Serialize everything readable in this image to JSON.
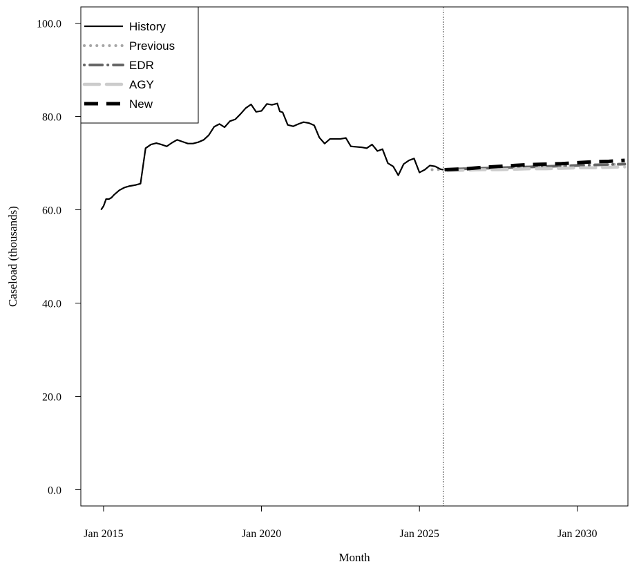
{
  "chart_data": {
    "type": "line",
    "title": "",
    "xlabel": "Month",
    "ylabel": "Caseload (thousands)",
    "xlim": [
      2014.28,
      2031.6
    ],
    "ylim": [
      -3.5,
      103.5
    ],
    "x_ticks": [
      2015,
      2020,
      2025,
      2030
    ],
    "x_tick_labels": [
      "Jan 2015",
      "Jan 2020",
      "Jan 2025",
      "Jan 2030"
    ],
    "y_ticks": [
      0,
      20,
      40,
      60,
      80,
      100
    ],
    "y_tick_labels": [
      "0.0",
      "20.0",
      "40.0",
      "60.0",
      "80.0",
      "100.0"
    ],
    "forecast_start_line_x": 2025.75,
    "grid": false,
    "legend_position": "top-left",
    "series": [
      {
        "name": "History",
        "color": "#000000",
        "style": "solid",
        "x": [
          2014.92,
          2015.0,
          2015.08,
          2015.17,
          2015.25,
          2015.33,
          2015.5,
          2015.67,
          2015.83,
          2016.0,
          2016.17,
          2016.33,
          2016.5,
          2016.67,
          2016.83,
          2017.0,
          2017.17,
          2017.33,
          2017.5,
          2017.67,
          2017.83,
          2018.0,
          2018.17,
          2018.33,
          2018.5,
          2018.67,
          2018.83,
          2019.0,
          2019.17,
          2019.33,
          2019.5,
          2019.67,
          2019.83,
          2020.0,
          2020.17,
          2020.33,
          2020.5,
          2020.58,
          2020.67,
          2020.83,
          2021.0,
          2021.17,
          2021.33,
          2021.5,
          2021.67,
          2021.83,
          2022.0,
          2022.17,
          2022.33,
          2022.5,
          2022.67,
          2022.83,
          2023.0,
          2023.17,
          2023.33,
          2023.5,
          2023.67,
          2023.83,
          2024.0,
          2024.17,
          2024.33,
          2024.5,
          2024.67,
          2024.83,
          2025.0,
          2025.17,
          2025.33,
          2025.5,
          2025.67,
          2025.75
        ],
        "values": [
          60.0,
          60.8,
          62.3,
          62.3,
          62.6,
          63.2,
          64.2,
          64.8,
          65.1,
          65.3,
          65.6,
          73.2,
          74.0,
          74.3,
          74.0,
          73.6,
          74.4,
          75.0,
          74.6,
          74.2,
          74.2,
          74.5,
          75.0,
          76.0,
          77.8,
          78.4,
          77.7,
          79.0,
          79.4,
          80.5,
          81.8,
          82.6,
          81.0,
          81.2,
          82.7,
          82.5,
          82.8,
          81.1,
          80.9,
          78.2,
          77.9,
          78.4,
          78.8,
          78.6,
          78.1,
          75.5,
          74.2,
          75.2,
          75.2,
          75.2,
          75.4,
          73.6,
          73.5,
          73.4,
          73.2,
          74.0,
          72.6,
          73.0,
          70.0,
          69.3,
          67.4,
          69.8,
          70.6,
          71.0,
          68.0,
          68.6,
          69.5,
          69.3,
          68.7,
          68.6
        ]
      },
      {
        "name": "Previous",
        "color": "#a6a6a6",
        "style": "dotted",
        "x": [
          2025.4,
          2026.0,
          2026.5,
          2027.0,
          2027.5,
          2028.0,
          2028.5,
          2029.0,
          2029.5,
          2030.0,
          2030.5,
          2031.0,
          2031.5
        ],
        "values": [
          68.6,
          68.7,
          68.8,
          68.9,
          69.0,
          69.1,
          69.2,
          69.3,
          69.4,
          69.5,
          69.6,
          69.7,
          69.8
        ]
      },
      {
        "name": "EDR",
        "color": "#666666",
        "style": "dashdot",
        "x": [
          2025.9,
          2026.5,
          2027.0,
          2027.5,
          2028.0,
          2028.5,
          2029.0,
          2029.5,
          2030.0,
          2030.5,
          2031.0,
          2031.5
        ],
        "values": [
          68.7,
          68.8,
          68.9,
          69.0,
          69.1,
          69.2,
          69.3,
          69.4,
          69.5,
          69.6,
          69.7,
          69.8
        ]
      },
      {
        "name": "AGY",
        "color": "#cccccc",
        "style": "longdash",
        "x": [
          2025.9,
          2026.5,
          2027.0,
          2027.5,
          2028.0,
          2028.5,
          2029.0,
          2029.5,
          2030.0,
          2030.5,
          2031.0,
          2031.5
        ],
        "values": [
          68.4,
          68.5,
          68.6,
          68.6,
          68.7,
          68.8,
          68.8,
          68.9,
          69.0,
          69.0,
          69.1,
          69.2
        ]
      },
      {
        "name": "New",
        "color": "#000000",
        "style": "dashed",
        "x": [
          2025.8,
          2026.5,
          2027.0,
          2027.5,
          2028.0,
          2028.5,
          2029.0,
          2029.5,
          2030.0,
          2030.5,
          2031.0,
          2031.5
        ],
        "values": [
          68.6,
          68.8,
          69.1,
          69.3,
          69.5,
          69.7,
          69.8,
          69.9,
          70.1,
          70.3,
          70.4,
          70.6
        ]
      }
    ]
  }
}
